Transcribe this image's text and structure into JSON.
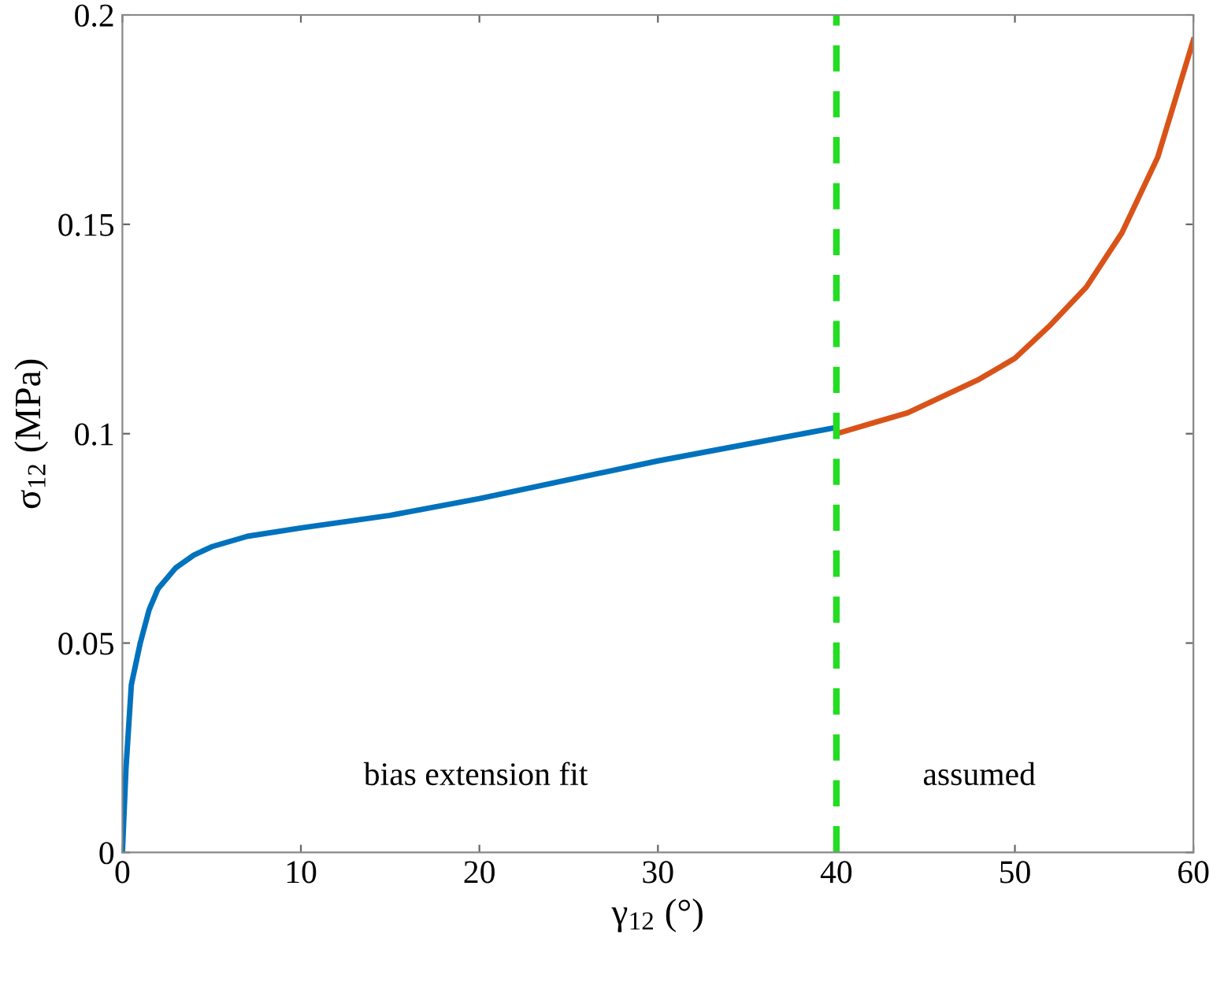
{
  "chart_data": {
    "type": "line",
    "xlabel": "γ$_{12}$ (°)",
    "ylabel": "σ$_{12}$ (MPa)",
    "xlim": [
      0,
      60
    ],
    "xticks": [
      0,
      10,
      20,
      30,
      40,
      50,
      60
    ],
    "ylim": [
      0,
      0.2
    ],
    "yticks": [
      0,
      0.05,
      0.1,
      0.15,
      0.2
    ],
    "grid": false,
    "legend": false,
    "marker": "none",
    "line_style": "solid",
    "series": [
      {
        "color": "#0072bd",
        "x": [
          0,
          0.2,
          0.5,
          1,
          1.5,
          2,
          3,
          4,
          5,
          7,
          10,
          15,
          20,
          25,
          30,
          35,
          40
        ],
        "values": [
          0,
          0.02,
          0.04,
          0.05,
          0.058,
          0.063,
          0.068,
          0.071,
          0.073,
          0.0755,
          0.0775,
          0.0805,
          0.0845,
          0.089,
          0.0935,
          0.0975,
          0.1015
        ]
      },
      {
        "color": "#d95319",
        "x": [
          40,
          42,
          44,
          46,
          48,
          50,
          52,
          54,
          56,
          58,
          60
        ],
        "values": [
          0.1,
          0.1025,
          0.105,
          0.109,
          0.113,
          0.118,
          0.126,
          0.135,
          0.148,
          0.166,
          0.194
        ]
      }
    ],
    "ref_lines": [
      {
        "axis": "x",
        "value": 40,
        "color": "#22dd22",
        "line_style": "dashed"
      }
    ],
    "annotations": [
      "bias extension fit",
      "assumed"
    ]
  }
}
